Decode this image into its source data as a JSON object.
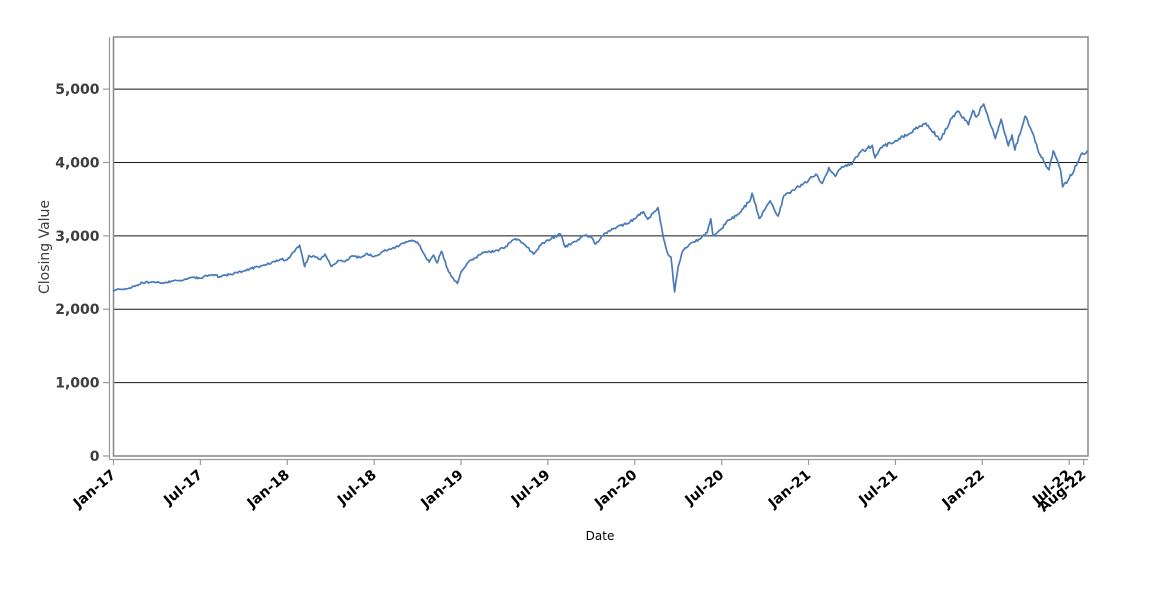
{
  "chart_data": {
    "type": "line",
    "title": "",
    "xlabel": "Date",
    "ylabel": "Closing Value",
    "legend": "none",
    "grid": "horizontal-only",
    "line_color": "#4a7ab8",
    "grid_color": "#161616",
    "axis_color": "#9a9a9a",
    "border_color": "#878787",
    "y_tick_color": "#3d3d3d",
    "x_tick_color": "#000000",
    "x_unit": "months since Jan-2017",
    "xlim": [
      0,
      67.3
    ],
    "ylim": [
      0,
      5710
    ],
    "x_ticks": [
      {
        "m": 0,
        "label": "Jan-17"
      },
      {
        "m": 6,
        "label": "Jul-17"
      },
      {
        "m": 12,
        "label": "Jan-18"
      },
      {
        "m": 18,
        "label": "Jul-18"
      },
      {
        "m": 24,
        "label": "Jan-19"
      },
      {
        "m": 30,
        "label": "Jul-19"
      },
      {
        "m": 36,
        "label": "Jan-20"
      },
      {
        "m": 42,
        "label": "Jul-20"
      },
      {
        "m": 48,
        "label": "Jan-21"
      },
      {
        "m": 54,
        "label": "Jul-21"
      },
      {
        "m": 60,
        "label": "Jan-22"
      },
      {
        "m": 66,
        "label": "Jul-22"
      },
      {
        "m": 67,
        "label": "Aug-22"
      }
    ],
    "y_ticks": [
      {
        "v": 0,
        "label": "0"
      },
      {
        "v": 1000,
        "label": "1,000"
      },
      {
        "v": 2000,
        "label": "2,000"
      },
      {
        "v": 3000,
        "label": "3,000"
      },
      {
        "v": 4000,
        "label": "4,000"
      },
      {
        "v": 5000,
        "label": "5,000"
      }
    ],
    "series": [
      {
        "name": "Closing Value",
        "points": [
          [
            0,
            2258
          ],
          [
            0.5,
            2271
          ],
          [
            1,
            2280
          ],
          [
            1.5,
            2316
          ],
          [
            2,
            2364
          ],
          [
            2.5,
            2366
          ],
          [
            3,
            2363
          ],
          [
            3.5,
            2356
          ],
          [
            4,
            2384
          ],
          [
            4.5,
            2391
          ],
          [
            5,
            2412
          ],
          [
            5.5,
            2434
          ],
          [
            6,
            2423
          ],
          [
            6.4,
            2460
          ],
          [
            7,
            2470
          ],
          [
            7.3,
            2438
          ],
          [
            7.6,
            2465
          ],
          [
            8,
            2472
          ],
          [
            8.5,
            2500
          ],
          [
            9,
            2519
          ],
          [
            9.5,
            2555
          ],
          [
            10,
            2575
          ],
          [
            10.5,
            2600
          ],
          [
            11,
            2648
          ],
          [
            11.5,
            2680
          ],
          [
            12,
            2674
          ],
          [
            12.5,
            2786
          ],
          [
            12.85,
            2873
          ],
          [
            13.2,
            2581
          ],
          [
            13.5,
            2732
          ],
          [
            13.9,
            2714
          ],
          [
            14.3,
            2677
          ],
          [
            14.6,
            2750
          ],
          [
            15.05,
            2582
          ],
          [
            15.5,
            2663
          ],
          [
            16,
            2648
          ],
          [
            16.5,
            2728
          ],
          [
            17,
            2705
          ],
          [
            17.5,
            2762
          ],
          [
            18,
            2718
          ],
          [
            18.5,
            2775
          ],
          [
            19,
            2816
          ],
          [
            19.5,
            2850
          ],
          [
            20,
            2902
          ],
          [
            20.7,
            2931
          ],
          [
            21,
            2914
          ],
          [
            21.4,
            2768
          ],
          [
            21.8,
            2641
          ],
          [
            22.1,
            2738
          ],
          [
            22.35,
            2632
          ],
          [
            22.65,
            2790
          ],
          [
            23.15,
            2506
          ],
          [
            23.75,
            2351
          ],
          [
            24,
            2510
          ],
          [
            24.5,
            2640
          ],
          [
            25,
            2704
          ],
          [
            25.5,
            2775
          ],
          [
            26,
            2784
          ],
          [
            26.5,
            2805
          ],
          [
            27,
            2834
          ],
          [
            27.6,
            2946
          ],
          [
            28,
            2946
          ],
          [
            28.6,
            2840
          ],
          [
            29,
            2752
          ],
          [
            29.5,
            2873
          ],
          [
            30,
            2942
          ],
          [
            30.85,
            3026
          ],
          [
            31.2,
            2847
          ],
          [
            31.5,
            2888
          ],
          [
            32,
            2926
          ],
          [
            32.5,
            3007
          ],
          [
            33,
            2977
          ],
          [
            33.3,
            2888
          ],
          [
            34,
            3038
          ],
          [
            34.5,
            3094
          ],
          [
            35,
            3141
          ],
          [
            35.5,
            3169
          ],
          [
            36,
            3231
          ],
          [
            36.6,
            3330
          ],
          [
            36.9,
            3226
          ],
          [
            37.6,
            3386
          ],
          [
            38,
            2954
          ],
          [
            38.3,
            2746
          ],
          [
            38.5,
            2711
          ],
          [
            38.75,
            2237
          ],
          [
            39,
            2585
          ],
          [
            39.3,
            2790
          ],
          [
            40,
            2912
          ],
          [
            40.5,
            2955
          ],
          [
            41,
            3044
          ],
          [
            41.25,
            3232
          ],
          [
            41.4,
            3002
          ],
          [
            42,
            3100
          ],
          [
            42.5,
            3216
          ],
          [
            43,
            3271
          ],
          [
            43.5,
            3373
          ],
          [
            44,
            3500
          ],
          [
            44.1,
            3581
          ],
          [
            44.6,
            3237
          ],
          [
            45,
            3363
          ],
          [
            45.35,
            3477
          ],
          [
            45.9,
            3270
          ],
          [
            46.3,
            3550
          ],
          [
            47,
            3622
          ],
          [
            47.5,
            3700
          ],
          [
            48,
            3756
          ],
          [
            48.5,
            3841
          ],
          [
            48.95,
            3714
          ],
          [
            49.4,
            3930
          ],
          [
            49.85,
            3811
          ],
          [
            50.3,
            3943
          ],
          [
            51,
            3973
          ],
          [
            51.5,
            4129
          ],
          [
            52,
            4181
          ],
          [
            52.4,
            4233
          ],
          [
            52.6,
            4063
          ],
          [
            53,
            4204
          ],
          [
            54,
            4298
          ],
          [
            54.5,
            4358
          ],
          [
            55,
            4395
          ],
          [
            55.6,
            4480
          ],
          [
            56,
            4523
          ],
          [
            56.1,
            4537
          ],
          [
            57.1,
            4308
          ],
          [
            57.9,
            4605
          ],
          [
            58.3,
            4701
          ],
          [
            59.05,
            4513
          ],
          [
            59.35,
            4709
          ],
          [
            59.6,
            4621
          ],
          [
            60,
            4766
          ],
          [
            60.1,
            4797
          ],
          [
            60.9,
            4326
          ],
          [
            61.3,
            4589
          ],
          [
            61.8,
            4226
          ],
          [
            62.05,
            4374
          ],
          [
            62.25,
            4170
          ],
          [
            62.95,
            4631
          ],
          [
            63.5,
            4392
          ],
          [
            63.9,
            4132
          ],
          [
            64.6,
            3900
          ],
          [
            64.9,
            4158
          ],
          [
            65.4,
            3901
          ],
          [
            65.55,
            3667
          ],
          [
            66,
            3785
          ],
          [
            66.5,
            3960
          ],
          [
            66.9,
            4130
          ],
          [
            67.1,
            4118
          ],
          [
            67.25,
            4155
          ]
        ]
      }
    ]
  }
}
